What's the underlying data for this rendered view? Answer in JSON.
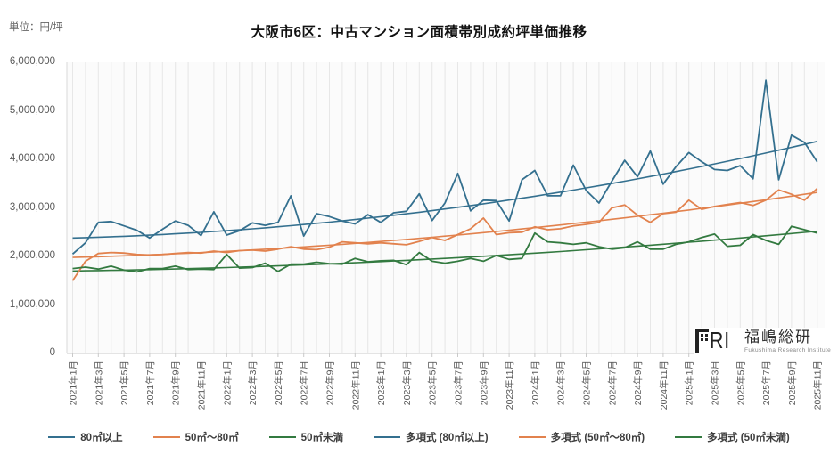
{
  "page": {
    "unit_label": "単位：円/坪",
    "title": "大阪市6区：中古マンション面積帯別成約坪単価推移"
  },
  "logo": {
    "mark": "RI",
    "name_jp": "福嶋総研",
    "name_en": "Fukushima Research Institute"
  },
  "chart_data": {
    "type": "line",
    "title": "大阪市6区：中古マンション面積帯別成約坪単価推移",
    "unit": "円/坪",
    "grid": "vertical-monthly",
    "legend_position": "bottom",
    "y_axis": {
      "min": 0,
      "max": 6000000,
      "tick_interval": 1000000,
      "tick_labels": [
        "6,000,000",
        "5,000,000",
        "4,000,000",
        "3,000,000",
        "2,000,000",
        "1,000,000",
        "0"
      ]
    },
    "x_axis": {
      "month_count": 59,
      "first_month": "2021年1月",
      "last_month": "2025年11月",
      "label_every_n_months": 2,
      "tick_labels": [
        "2021年1月",
        "2021年3月",
        "2021年5月",
        "2021年7月",
        "2021年9月",
        "2021年11月",
        "2022年1月",
        "2022年3月",
        "2022年5月",
        "2022年7月",
        "2022年9月",
        "2022年11月",
        "2023年1月",
        "2023年3月",
        "2023年5月",
        "2023年7月",
        "2023年9月",
        "2023年11月",
        "2024年1月",
        "2024年3月",
        "2024年5月",
        "2024年7月",
        "2024年9月",
        "2024年11月",
        "2025年1月",
        "2025年3月",
        "2025年5月",
        "2025年7月",
        "2025年9月",
        "2025年11月"
      ]
    },
    "series": [
      {
        "name": "80㎡以上",
        "color": "#34708f",
        "values": [
          2050000,
          2280000,
          2700000,
          2720000,
          2630000,
          2540000,
          2380000,
          2560000,
          2730000,
          2640000,
          2430000,
          2920000,
          2440000,
          2530000,
          2690000,
          2640000,
          2700000,
          3250000,
          2420000,
          2880000,
          2820000,
          2730000,
          2670000,
          2860000,
          2700000,
          2900000,
          2930000,
          3290000,
          2740000,
          3100000,
          3710000,
          2940000,
          3160000,
          3150000,
          2730000,
          3580000,
          3770000,
          3250000,
          3250000,
          3880000,
          3360000,
          3100000,
          3550000,
          3980000,
          3640000,
          4170000,
          3490000,
          3850000,
          4140000,
          3950000,
          3790000,
          3770000,
          3870000,
          3600000,
          5630000,
          3580000,
          4500000,
          4350000,
          3950000
        ]
      },
      {
        "name": "50㎡〜80㎡",
        "color": "#e2824e",
        "values": [
          1500000,
          1900000,
          2060000,
          2080000,
          2070000,
          2040000,
          2030000,
          2040000,
          2060000,
          2080000,
          2070000,
          2110000,
          2080000,
          2120000,
          2130000,
          2110000,
          2150000,
          2200000,
          2150000,
          2140000,
          2190000,
          2300000,
          2280000,
          2260000,
          2280000,
          2260000,
          2240000,
          2310000,
          2390000,
          2330000,
          2450000,
          2570000,
          2790000,
          2450000,
          2490000,
          2500000,
          2610000,
          2550000,
          2570000,
          2630000,
          2660000,
          2700000,
          3000000,
          3060000,
          2850000,
          2700000,
          2880000,
          2910000,
          3160000,
          2970000,
          3030000,
          3070000,
          3110000,
          3050000,
          3160000,
          3370000,
          3280000,
          3160000,
          3400000
        ]
      },
      {
        "name": "50㎡未満",
        "color": "#337a40",
        "values": [
          1750000,
          1780000,
          1740000,
          1800000,
          1720000,
          1680000,
          1750000,
          1750000,
          1800000,
          1730000,
          1740000,
          1730000,
          2040000,
          1760000,
          1770000,
          1860000,
          1690000,
          1840000,
          1840000,
          1880000,
          1850000,
          1840000,
          1960000,
          1890000,
          1910000,
          1920000,
          1830000,
          2080000,
          1900000,
          1860000,
          1900000,
          1960000,
          1900000,
          2020000,
          1940000,
          1960000,
          2480000,
          2300000,
          2280000,
          2250000,
          2280000,
          2200000,
          2150000,
          2180000,
          2300000,
          2150000,
          2150000,
          2250000,
          2300000,
          2390000,
          2460000,
          2210000,
          2230000,
          2450000,
          2330000,
          2250000,
          2620000,
          2550000,
          2480000
        ]
      }
    ],
    "trendlines": [
      {
        "name": "多項式 (80㎡以上)",
        "color": "#34708f",
        "poly_yen": [
          2380000,
          400000,
          1590000
        ]
      },
      {
        "name": "多項式 (50㎡〜80㎡)",
        "color": "#e2824e",
        "poly_yen": [
          1980000,
          410000,
          930000
        ]
      },
      {
        "name": "多項式 (50㎡未満)",
        "color": "#337a40",
        "poly_yen": [
          1700000,
          220000,
          600000
        ]
      }
    ]
  }
}
